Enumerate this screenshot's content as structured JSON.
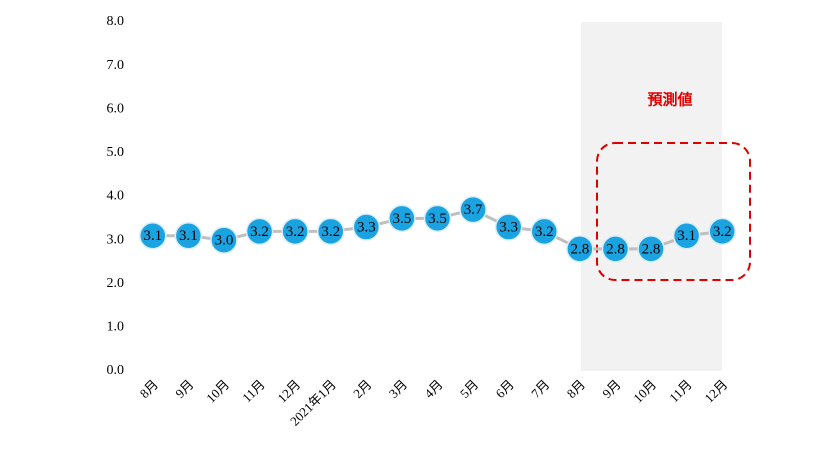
{
  "chart_data": {
    "type": "line",
    "categories": [
      "8月",
      "9月",
      "10月",
      "11月",
      "12月",
      "2021年1月",
      "2月",
      "3月",
      "4月",
      "5月",
      "6月",
      "7月",
      "8月",
      "9月",
      "10月",
      "11月",
      "12月"
    ],
    "values": [
      3.1,
      3.1,
      3.0,
      3.2,
      3.2,
      3.2,
      3.3,
      3.5,
      3.5,
      3.7,
      3.3,
      3.2,
      2.8,
      2.8,
      2.8,
      3.1,
      3.2
    ],
    "value_labels": [
      "3.1",
      "3.1",
      "3.0",
      "3.2",
      "3.2",
      "3.2",
      "3.3",
      "3.5",
      "3.5",
      "3.7",
      "3.3",
      "3.2",
      "2.8",
      "2.8",
      "2.8",
      "3.1",
      "3.2"
    ],
    "color": "#1aa3e0",
    "line_color": "#bfbfbf",
    "ylim": [
      0,
      8
    ],
    "yticks": [
      {
        "value": 0,
        "label": "0.0"
      },
      {
        "value": 1,
        "label": "1.0"
      },
      {
        "value": 2,
        "label": "2.0"
      },
      {
        "value": 3,
        "label": "3.0"
      },
      {
        "value": 4,
        "label": "4.0"
      },
      {
        "value": 5,
        "label": "5.0"
      },
      {
        "value": 6,
        "label": "6.0"
      },
      {
        "value": 7,
        "label": "7.0"
      },
      {
        "value": 8,
        "label": "8.0"
      }
    ],
    "annotation": "預測値"
  }
}
